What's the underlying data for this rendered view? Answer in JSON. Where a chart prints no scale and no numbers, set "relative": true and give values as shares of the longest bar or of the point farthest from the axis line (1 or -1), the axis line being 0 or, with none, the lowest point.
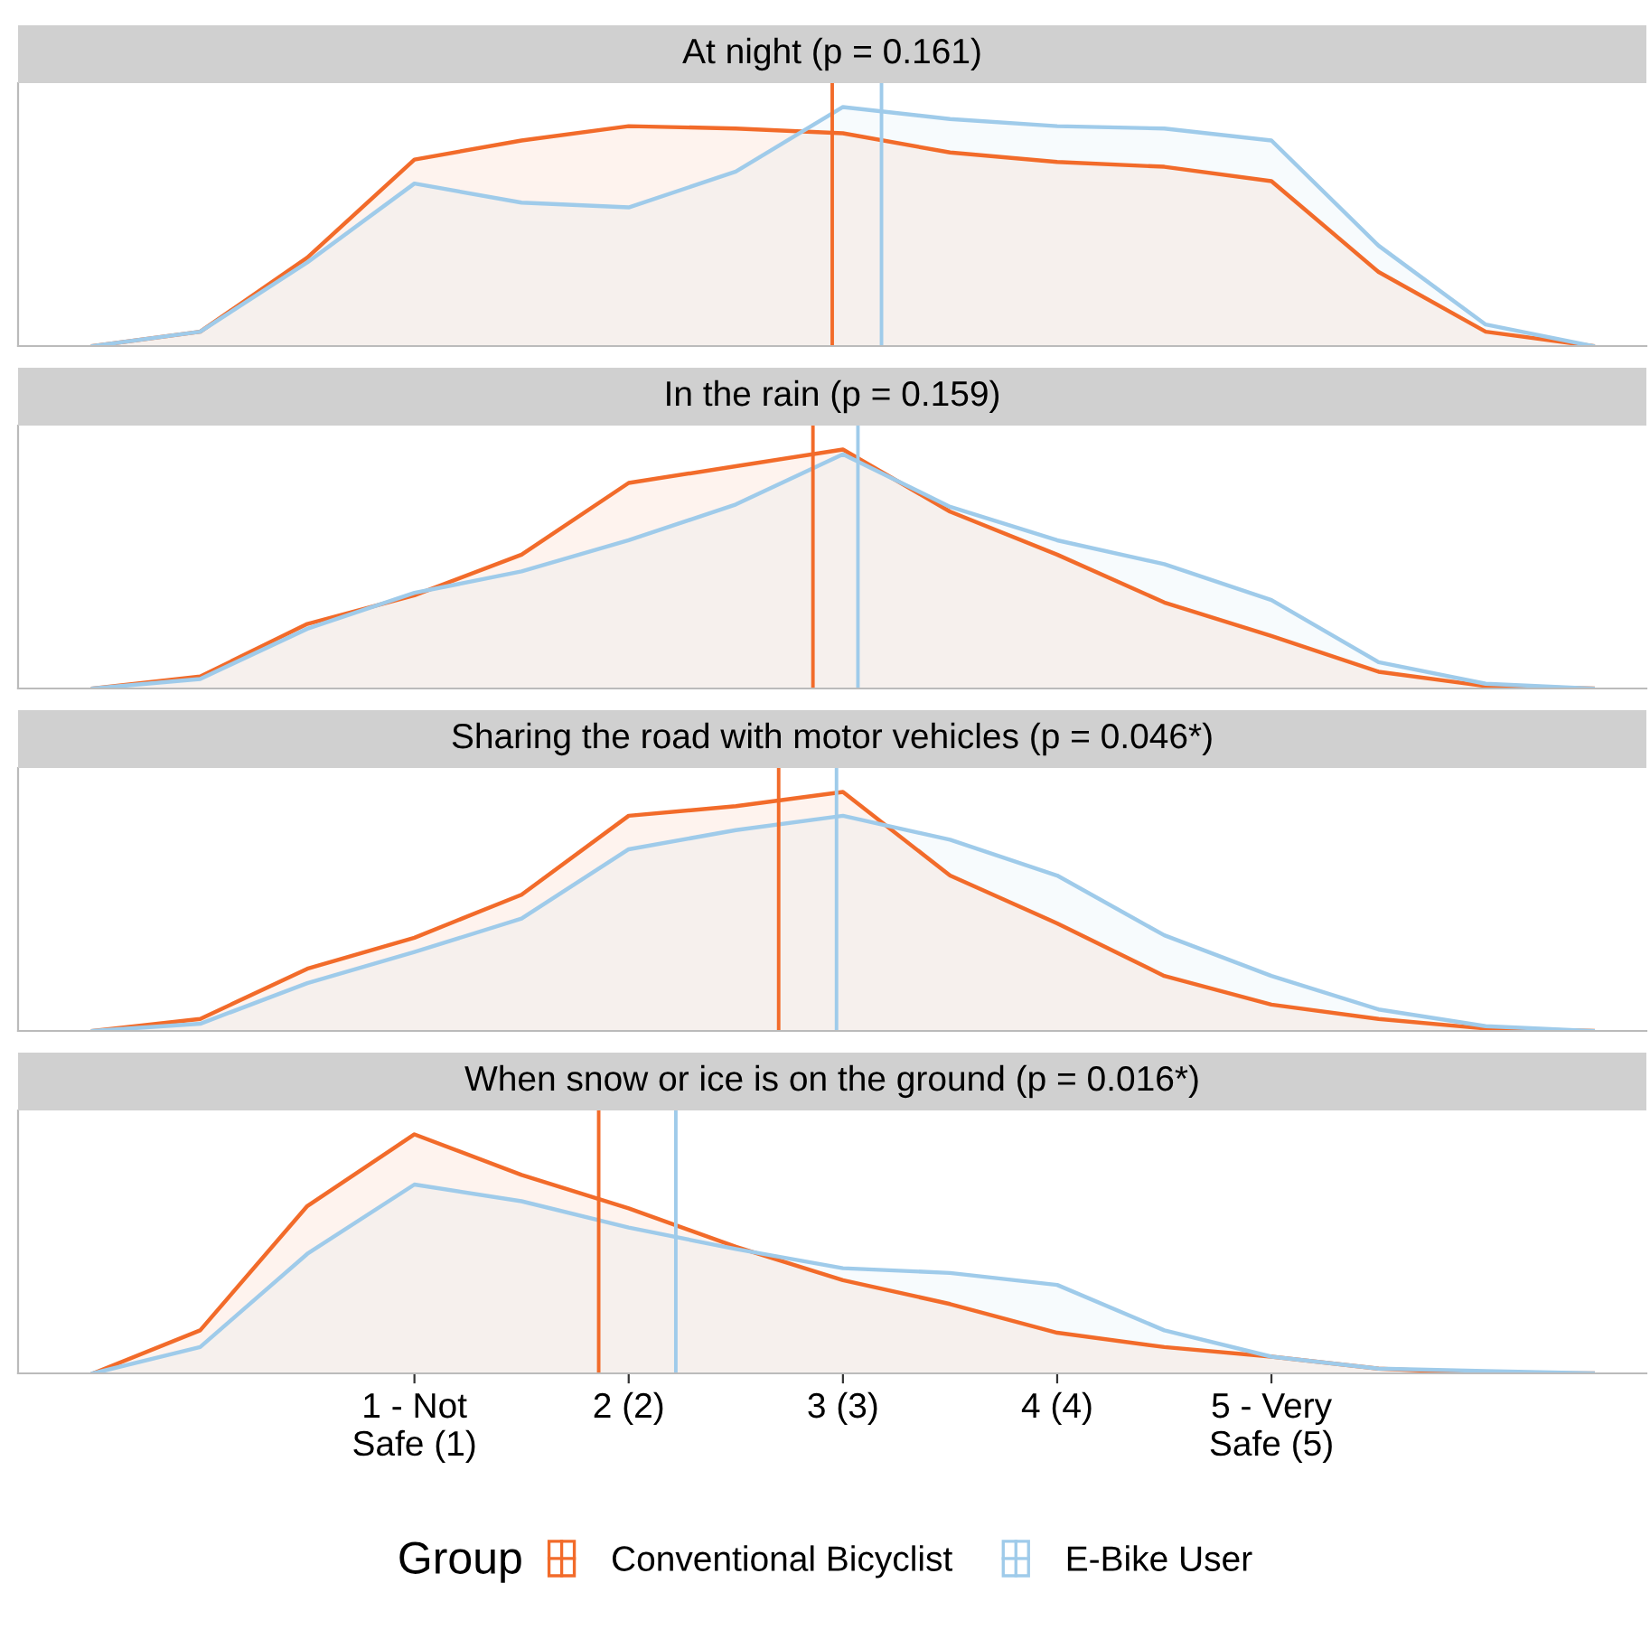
{
  "chart_data": [
    {
      "type": "area",
      "title": "At night (p = 0.161)",
      "relative": true,
      "categories": [
        null,
        null,
        null,
        null,
        null,
        null,
        null,
        null,
        null,
        null,
        null,
        null,
        null,
        null,
        null
      ],
      "tick_labels": false,
      "series": [
        {
          "color": "#f26b2a",
          "values": [
            0,
            0.06,
            0.37,
            0.78,
            0.86,
            0.92,
            0.91,
            0.89,
            0.81,
            0.77,
            0.75,
            0.69,
            0.31,
            0.06,
            0
          ]
        },
        {
          "color": "#9fcbea",
          "values": [
            0,
            0.06,
            0.35,
            0.68,
            0.6,
            0.58,
            0.73,
            1,
            0.95,
            0.92,
            0.91,
            0.86,
            0.42,
            0.09,
            0
          ]
        }
      ]
    },
    {
      "type": "area",
      "title": "In the rain (p = 0.159)",
      "relative": true,
      "categories": [
        null,
        null,
        null,
        null,
        null,
        null,
        null,
        null,
        null,
        null,
        null,
        null,
        null,
        null,
        null
      ],
      "tick_labels": false,
      "series": [
        {
          "color": "#f26b2a",
          "values": [
            0,
            0.05,
            0.27,
            0.39,
            0.56,
            0.86,
            0.93,
            1,
            0.74,
            0.56,
            0.36,
            0.22,
            0.07,
            0.01,
            0
          ]
        },
        {
          "color": "#9fcbea",
          "values": [
            0,
            0.04,
            0.25,
            0.4,
            0.49,
            0.62,
            0.77,
            0.98,
            0.76,
            0.62,
            0.52,
            0.37,
            0.11,
            0.02,
            0
          ]
        }
      ]
    },
    {
      "type": "area",
      "title": "Sharing the road with motor vehicles (p = 0.046*)",
      "relative": true,
      "categories": [
        null,
        null,
        null,
        null,
        null,
        null,
        null,
        null,
        null,
        null,
        null,
        null,
        null,
        null,
        null
      ],
      "tick_labels": false,
      "series": [
        {
          "color": "#f26b2a",
          "values": [
            0,
            0.05,
            0.26,
            0.39,
            0.57,
            0.9,
            0.94,
            1,
            0.65,
            0.45,
            0.23,
            0.11,
            0.05,
            0.01,
            0
          ]
        },
        {
          "color": "#9fcbea",
          "values": [
            0,
            0.03,
            0.2,
            0.33,
            0.47,
            0.76,
            0.84,
            0.9,
            0.8,
            0.65,
            0.4,
            0.23,
            0.09,
            0.02,
            0
          ]
        }
      ]
    },
    {
      "type": "area",
      "title": "When snow or ice is on the ground (p = 0.016*)",
      "relative": true,
      "categories": [
        null,
        null,
        null,
        "1 - Not\nSafe (1)",
        null,
        "2 (2)",
        null,
        "3 (3)",
        null,
        "4 (4)",
        null,
        "5 - Very\nSafe (5)",
        null,
        null,
        null
      ],
      "tick_labels": "x",
      "legend": "bottom",
      "legend_title": "Group",
      "series": [
        {
          "name": "Conventional Bicyclist",
          "color": "#f26b2a",
          "values": [
            0,
            0.18,
            0.7,
            1,
            0.83,
            0.69,
            0.53,
            0.39,
            0.29,
            0.17,
            0.11,
            0.07,
            0.02,
            0,
            0
          ]
        },
        {
          "name": "E-Bike User",
          "color": "#9fcbea",
          "values": [
            0,
            0.11,
            0.5,
            0.79,
            0.72,
            0.61,
            0.52,
            0.44,
            0.42,
            0.37,
            0.18,
            0.07,
            0.02,
            0.01,
            0
          ]
        }
      ]
    }
  ]
}
